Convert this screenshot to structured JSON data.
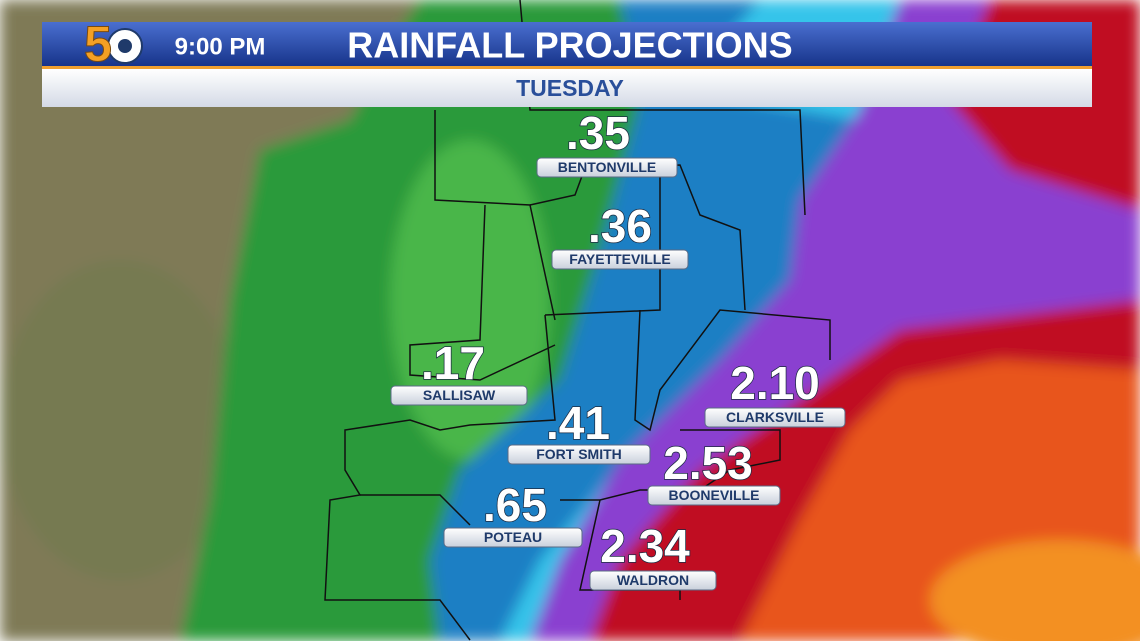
{
  "header": {
    "logo": "5",
    "time": "9:00 PM",
    "title": "RAINFALL PROJECTIONS",
    "subtitle": "TUESDAY"
  },
  "locations": [
    {
      "amount": ".35",
      "name": "BENTONVILLE"
    },
    {
      "amount": ".36",
      "name": "FAYETTEVILLE"
    },
    {
      "amount": ".17",
      "name": "SALLISAW"
    },
    {
      "amount": ".41",
      "name": "FORT SMITH"
    },
    {
      "amount": "2.10",
      "name": "CLARKSVILLE"
    },
    {
      "amount": "2.53",
      "name": "BOONEVILLE"
    },
    {
      "amount": ".65",
      "name": "POTEAU"
    },
    {
      "amount": "2.34",
      "name": "WALDRON"
    }
  ]
}
